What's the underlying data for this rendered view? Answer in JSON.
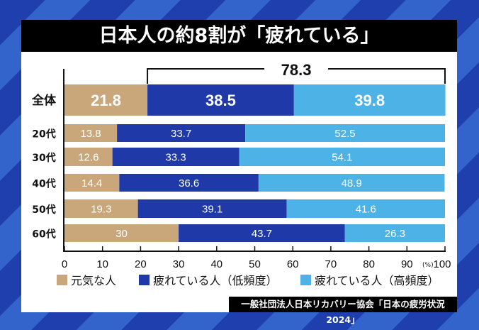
{
  "title": "日本人の約8割が「疲れている」",
  "source": "一般社団法人日本リカバリー協会「日本の疲労状況2024」",
  "chart_data": {
    "type": "bar",
    "orientation": "horizontal",
    "stacked": true,
    "title": "日本人の約8割が「疲れている」",
    "categories": [
      "全体",
      "20代",
      "30代",
      "40代",
      "50代",
      "60代"
    ],
    "series": [
      {
        "name": "元気な人",
        "color": "#c9a77a",
        "values": [
          21.8,
          13.8,
          12.6,
          14.4,
          19.3,
          30
        ]
      },
      {
        "name": "疲れている人（低頻度）",
        "color": "#1f3aa8",
        "values": [
          38.5,
          33.7,
          33.3,
          36.6,
          39.1,
          43.7
        ]
      },
      {
        "name": "疲れている人（高頻度）",
        "color": "#4db3e6",
        "values": [
          39.8,
          52.5,
          54.1,
          48.9,
          41.6,
          26.3
        ]
      }
    ],
    "x_ticks": [
      "0",
      "10",
      "20",
      "30",
      "40",
      "50",
      "60",
      "70",
      "80",
      "90",
      "100"
    ],
    "x_unit": "(%)",
    "xlim": [
      0,
      100
    ],
    "annotation": {
      "label": "78.3",
      "from": 21.8,
      "to": 100,
      "category": "全体"
    },
    "legend": "bottom",
    "grid": false
  }
}
